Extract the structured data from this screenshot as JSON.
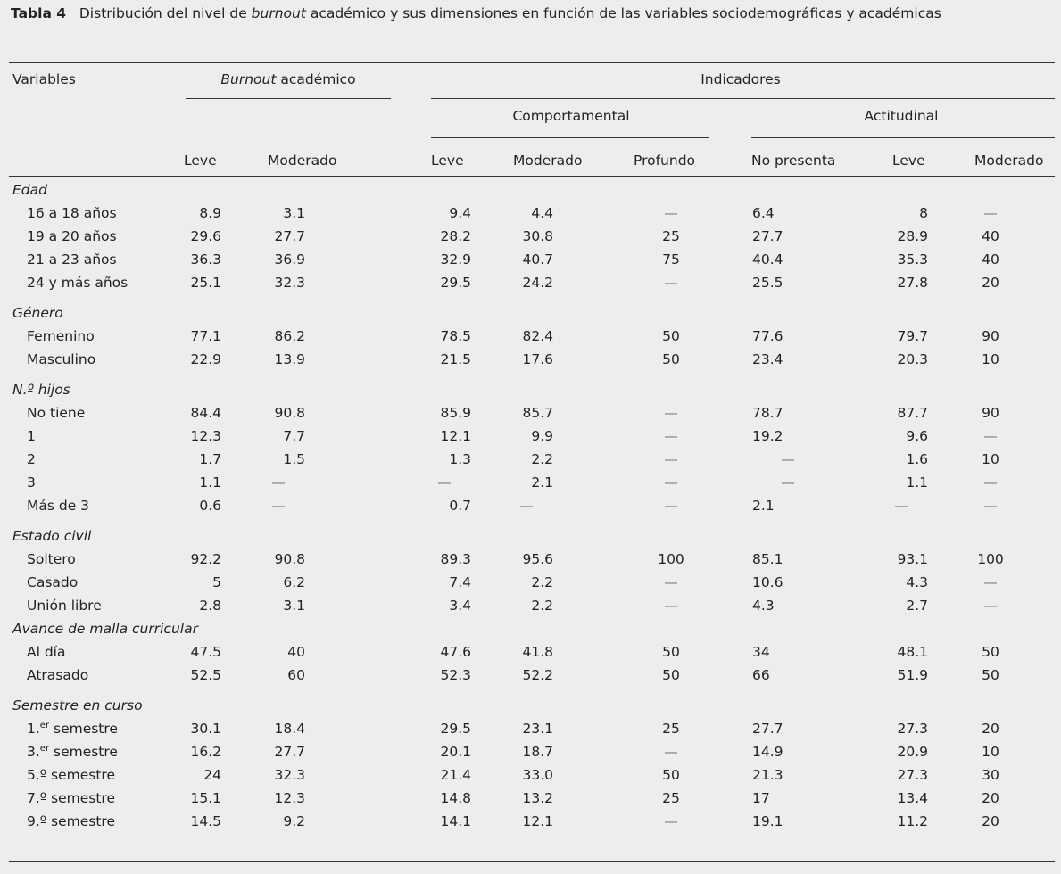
{
  "caption": {
    "label": "Tabla 4",
    "text_before": "Distribución del nivel de ",
    "italic": "burnout",
    "text_after": " académico y sus dimensiones en función de las variables sociodemográficas y académicas"
  },
  "headers": {
    "variables": "Variables",
    "burnout_italic": "Burnout",
    "burnout_rest": " académico",
    "indicadores": "Indicadores",
    "comportamental": "Comportamental",
    "actitudinal": "Actitudinal",
    "columns": [
      "Leve",
      "Moderado",
      "Leve",
      "Moderado",
      "Profundo",
      "No presenta",
      "Leve",
      "Moderado"
    ]
  },
  "groups": [
    {
      "title": "Edad",
      "rows": [
        {
          "label": "16 a 18 años",
          "values": [
            "8.9",
            "3.1",
            "9.4",
            "4.4",
            "—",
            "6.4",
            "8",
            "—"
          ]
        },
        {
          "label": "19 a 20 años",
          "values": [
            "29.6",
            "27.7",
            "28.2",
            "30.8",
            "25",
            "27.7",
            "28.9",
            "40"
          ]
        },
        {
          "label": "21 a 23 años",
          "values": [
            "36.3",
            "36.9",
            "32.9",
            "40.7",
            "75",
            "40.4",
            "35.3",
            "40"
          ]
        },
        {
          "label": "24 y más años",
          "values": [
            "25.1",
            "32.3",
            "29.5",
            "24.2",
            "—",
            "25.5",
            "27.8",
            "20"
          ]
        }
      ]
    },
    {
      "title": "Género",
      "rows": [
        {
          "label": "Femenino",
          "values": [
            "77.1",
            "86.2",
            "78.5",
            "82.4",
            "50",
            "77.6",
            "79.7",
            "90"
          ]
        },
        {
          "label": "Masculino",
          "values": [
            "22.9",
            "13.9",
            "21.5",
            "17.6",
            "50",
            "23.4",
            "20.3",
            "10"
          ]
        }
      ]
    },
    {
      "title": "N.º hijos",
      "rows": [
        {
          "label": "No tiene",
          "values": [
            "84.4",
            "90.8",
            "85.9",
            "85.7",
            "—",
            "78.7",
            "87.7",
            "90"
          ]
        },
        {
          "label": "1",
          "values": [
            "12.3",
            "7.7",
            "12.1",
            "9.9",
            "—",
            "19.2",
            "9.6",
            "—"
          ]
        },
        {
          "label": "2",
          "values": [
            "1.7",
            "1.5",
            "1.3",
            "2.2",
            "—",
            "—",
            "1.6",
            "10"
          ]
        },
        {
          "label": "3",
          "values": [
            "1.1",
            "—",
            "—",
            "2.1",
            "—",
            "—",
            "1.1",
            "—"
          ]
        },
        {
          "label": "Más de 3",
          "values": [
            "0.6",
            "—",
            "0.7",
            "—",
            "—",
            "2.1",
            "—",
            "—"
          ]
        }
      ]
    },
    {
      "title": "Estado civil",
      "rows": [
        {
          "label": "Soltero",
          "values": [
            "92.2",
            "90.8",
            "89.3",
            "95.6",
            "100",
            "85.1",
            "93.1",
            "100"
          ]
        },
        {
          "label": "Casado",
          "values": [
            "5",
            "6.2",
            "7.4",
            "2.2",
            "—",
            "10.6",
            "4.3",
            "—"
          ]
        },
        {
          "label": "Unión libre",
          "values": [
            "2.8",
            "3.1",
            "3.4",
            "2.2",
            "—",
            "4.3",
            "2.7",
            "—"
          ]
        }
      ]
    },
    {
      "title": "Avance de malla curricular",
      "nogap": true,
      "rows": [
        {
          "label": "Al día",
          "values": [
            "47.5",
            "40",
            "47.6",
            "41.8",
            "50",
            "34",
            "48.1",
            "50"
          ]
        },
        {
          "label": "Atrasado",
          "values": [
            "52.5",
            "60",
            "52.3",
            "52.2",
            "50",
            "66",
            "51.9",
            "50"
          ]
        }
      ]
    },
    {
      "title": "Semestre en curso",
      "rows": [
        {
          "label": "1.",
          "sup": "er",
          "label_rest": " semestre",
          "values": [
            "30.1",
            "18.4",
            "29.5",
            "23.1",
            "25",
            "27.7",
            "27.3",
            "20"
          ]
        },
        {
          "label": "3.",
          "sup": "er",
          "label_rest": " semestre",
          "values": [
            "16.2",
            "27.7",
            "20.1",
            "18.7",
            "—",
            "14.9",
            "20.9",
            "10"
          ]
        },
        {
          "label": "5.º",
          "label_rest": " semestre",
          "values": [
            "24",
            "32.3",
            "21.4",
            "33.0",
            "50",
            "21.3",
            "27.3",
            "30"
          ]
        },
        {
          "label": "7.º",
          "label_rest": " semestre",
          "values": [
            "15.1",
            "12.3",
            "14.8",
            "13.2",
            "25",
            "17",
            "13.4",
            "20"
          ]
        },
        {
          "label": "9.º",
          "label_rest": " semestre",
          "values": [
            "14.5",
            "9.2",
            "14.1",
            "12.1",
            "—",
            "19.1",
            "11.2",
            "20"
          ]
        }
      ]
    }
  ]
}
